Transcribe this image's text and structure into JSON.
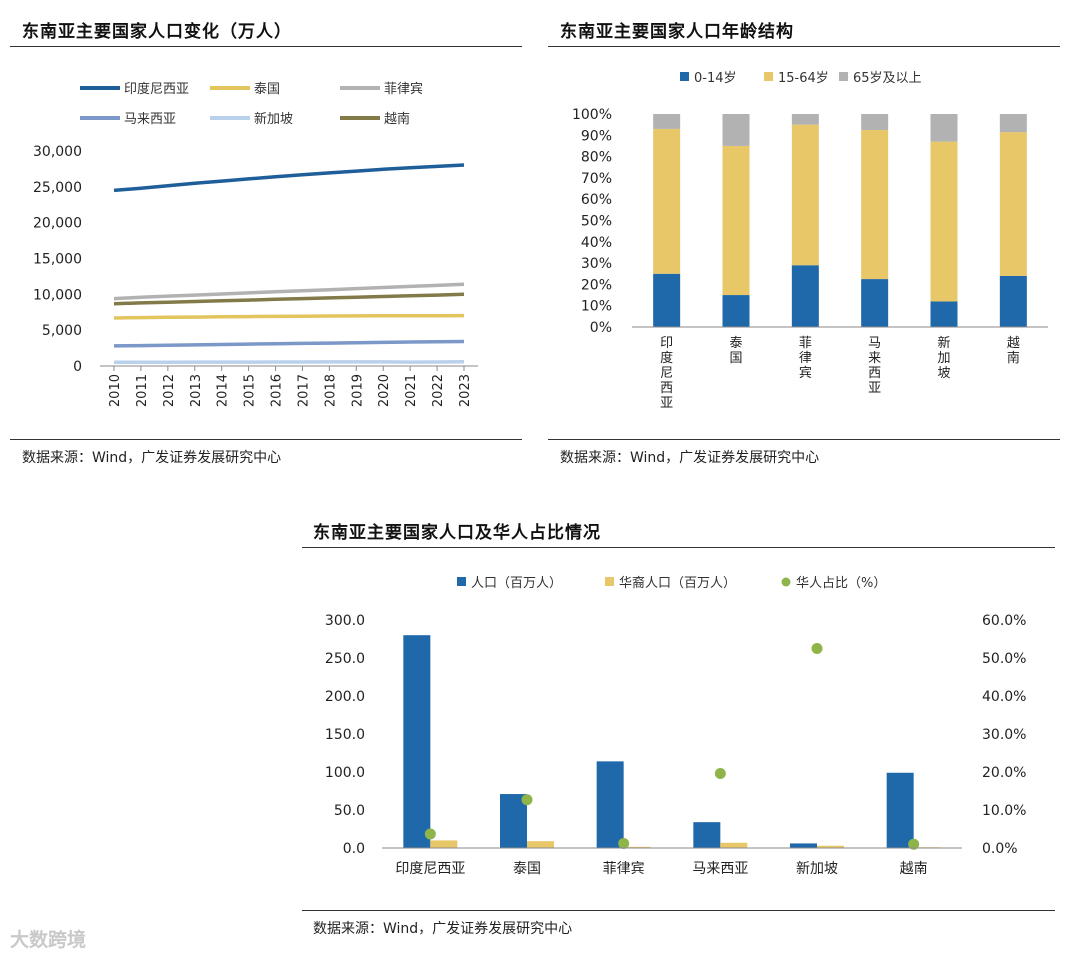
{
  "watermark": "大数跨境",
  "chart_data": [
    {
      "type": "line",
      "title": "东南亚主要国家人口变化（万人）",
      "source": "数据来源：Wind，广发证券发展研究中心",
      "x": [
        "2010",
        "2011",
        "2012",
        "2013",
        "2014",
        "2015",
        "2016",
        "2017",
        "2018",
        "2019",
        "2020",
        "2021",
        "2022",
        "2023"
      ],
      "ylim": [
        0,
        30000
      ],
      "yticks": [
        "0",
        "5,000",
        "10,000",
        "15,000",
        "20,000",
        "25,000",
        "30,000"
      ],
      "yticks_values": [
        0,
        5000,
        10000,
        15000,
        20000,
        25000,
        30000
      ],
      "grid": false,
      "legend_position": "top",
      "series": [
        {
          "name": "印度尼西亚",
          "color": "#1f5f99",
          "values": [
            24500,
            24800,
            25150,
            25500,
            25800,
            26100,
            26400,
            26700,
            26950,
            27200,
            27450,
            27650,
            27850,
            28050
          ]
        },
        {
          "name": "泰国",
          "color": "#e3c55e",
          "values": [
            6700,
            6750,
            6800,
            6830,
            6860,
            6890,
            6920,
            6950,
            6970,
            6990,
            7000,
            7010,
            7020,
            7030
          ]
        },
        {
          "name": "菲律宾",
          "color": "#b2b2b2",
          "values": [
            9400,
            9580,
            9750,
            9900,
            10050,
            10200,
            10350,
            10500,
            10650,
            10800,
            10950,
            11100,
            11250,
            11400
          ]
        },
        {
          "name": "马来西亚",
          "color": "#7b98c9",
          "values": [
            2800,
            2850,
            2900,
            2950,
            3000,
            3050,
            3100,
            3150,
            3200,
            3250,
            3300,
            3350,
            3380,
            3420
          ]
        },
        {
          "name": "新加坡",
          "color": "#b9d1ea",
          "values": [
            510,
            520,
            530,
            540,
            545,
            550,
            560,
            565,
            570,
            575,
            570,
            545,
            560,
            590
          ]
        },
        {
          "name": "越南",
          "color": "#837a4a",
          "values": [
            8700,
            8800,
            8900,
            9000,
            9100,
            9200,
            9300,
            9400,
            9500,
            9600,
            9700,
            9800,
            9900,
            10000
          ]
        }
      ]
    },
    {
      "type": "bar",
      "stacked": true,
      "title": "东南亚主要国家人口年龄结构",
      "source": "数据来源：Wind，广发证券发展研究中心",
      "categories": [
        "印度尼西亚",
        "泰国",
        "菲律宾",
        "马来西亚",
        "新加坡",
        "越南"
      ],
      "ylim": [
        0,
        100
      ],
      "yticks": [
        "0%",
        "10%",
        "20%",
        "30%",
        "40%",
        "50%",
        "60%",
        "70%",
        "80%",
        "90%",
        "100%"
      ],
      "yticks_values": [
        0,
        10,
        20,
        30,
        40,
        50,
        60,
        70,
        80,
        90,
        100
      ],
      "legend_position": "top",
      "series": [
        {
          "name": "0-14岁",
          "color": "#1f68a9",
          "values": [
            25,
            15,
            29,
            22.5,
            12,
            24
          ]
        },
        {
          "name": "15-64岁",
          "color": "#e8c768",
          "values": [
            68,
            70,
            66,
            70,
            75,
            67.5
          ]
        },
        {
          "name": "65岁及以上",
          "color": "#b2b2b2",
          "values": [
            7,
            15,
            5,
            7.5,
            13,
            8.5
          ]
        }
      ]
    },
    {
      "type": "bar",
      "title": "东南亚主要国家人口及华人占比情况",
      "source": "数据来源：Wind，广发证券发展研究中心",
      "categories": [
        "印度尼西亚",
        "泰国",
        "菲律宾",
        "马来西亚",
        "新加坡",
        "越南"
      ],
      "ylim": [
        0,
        300
      ],
      "y2lim": [
        0,
        60
      ],
      "yticks": [
        "0.0",
        "50.0",
        "100.0",
        "150.0",
        "200.0",
        "250.0",
        "300.0"
      ],
      "yticks_values": [
        0,
        50,
        100,
        150,
        200,
        250,
        300
      ],
      "y2ticks": [
        "0.0%",
        "10.0%",
        "20.0%",
        "30.0%",
        "40.0%",
        "50.0%",
        "60.0%"
      ],
      "y2ticks_values": [
        0,
        10,
        20,
        30,
        40,
        50,
        60
      ],
      "legend_position": "top",
      "series": [
        {
          "name": "人口（百万人）",
          "color": "#1f68a9",
          "axis": "left",
          "kind": "bar",
          "values": [
            280,
            71,
            114,
            34,
            6,
            99
          ]
        },
        {
          "name": "华裔人口（百万人）",
          "color": "#e8c768",
          "axis": "left",
          "kind": "bar",
          "values": [
            10,
            9,
            1.5,
            6.9,
            3.0,
            1.0
          ]
        },
        {
          "name": "华人占比（%）",
          "color": "#8fb54a",
          "axis": "right",
          "kind": "scatter",
          "values": [
            3.7,
            12.7,
            1.2,
            19.6,
            52.5,
            1.0
          ]
        }
      ]
    }
  ]
}
